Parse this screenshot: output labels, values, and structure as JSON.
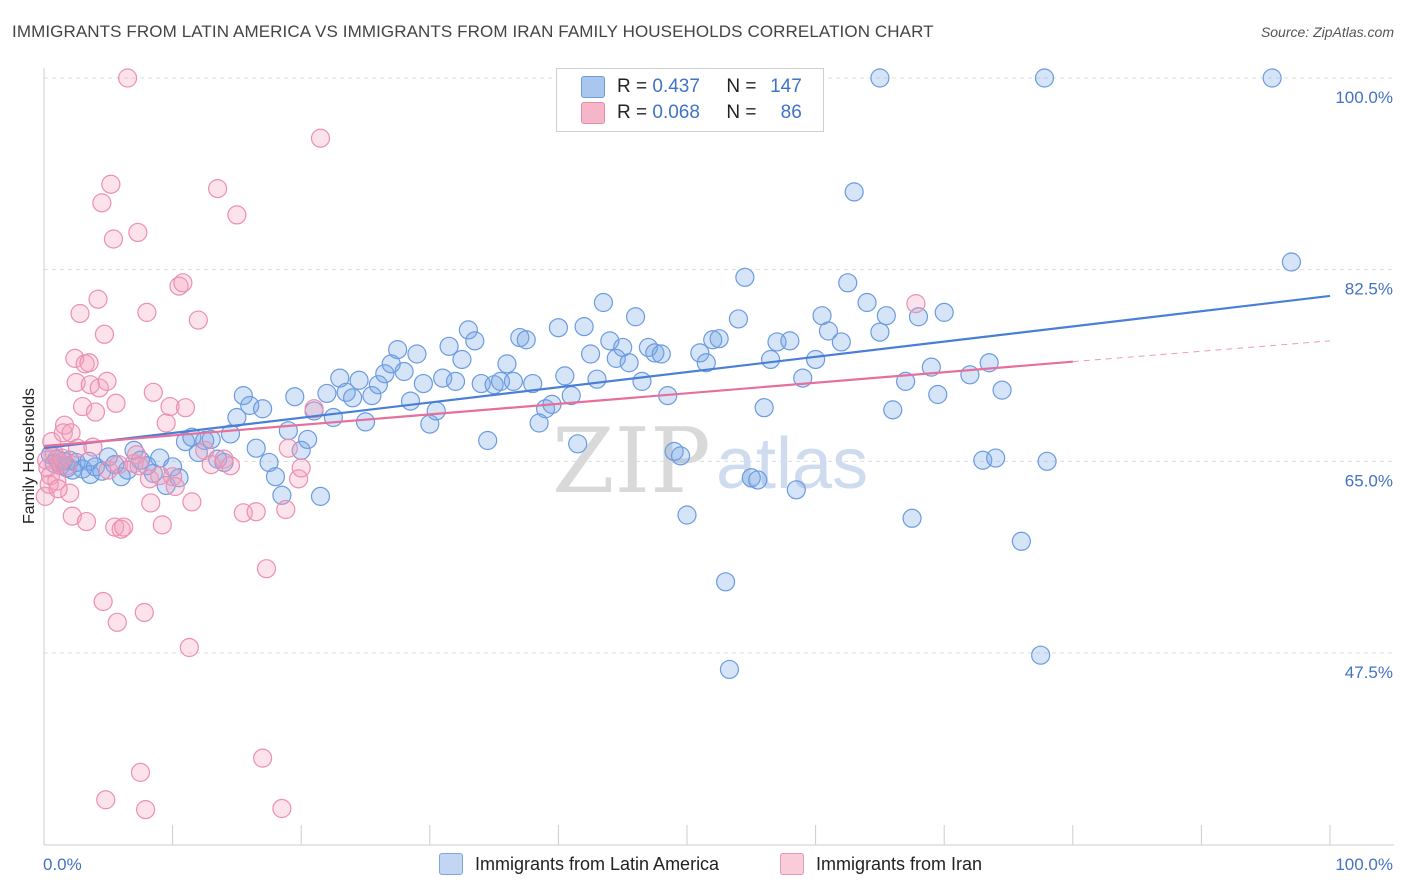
{
  "title": "IMMIGRANTS FROM LATIN AMERICA VS IMMIGRANTS FROM IRAN FAMILY HOUSEHOLDS CORRELATION CHART",
  "source": "Source: ZipAtlas.com",
  "watermark": {
    "zip": "ZIP",
    "atlas": "atlas"
  },
  "legend": {
    "rows": [
      {
        "r_label": "R =",
        "r_value": "0.437",
        "n_label": "N =",
        "n_value": "147",
        "color": "#a9c6ee",
        "border": "#6b9be0"
      },
      {
        "r_label": "R =",
        "r_value": "0.068",
        "n_label": "N =",
        "n_value": "86",
        "color": "#f6b6ca",
        "border": "#e68aa9"
      }
    ]
  },
  "bottom_legend": [
    {
      "label": "Immigrants from Latin America",
      "color": "#c2d6f3",
      "border": "#7ea5e0"
    },
    {
      "label": "Immigrants from Iran",
      "color": "#f9ccd9",
      "border": "#e896b2"
    }
  ],
  "chart_data": {
    "type": "scatter",
    "title": "IMMIGRANTS FROM LATIN AMERICA VS IMMIGRANTS FROM IRAN FAMILY HOUSEHOLDS CORRELATION CHART",
    "xlabel": "",
    "ylabel": "Family Households",
    "x_tick_labels": [
      "0.0%",
      "100.0%"
    ],
    "y_tick_labels": [
      "100.0%",
      "82.5%",
      "65.0%",
      "47.5%"
    ],
    "y_ticks": [
      100.0,
      82.5,
      65.0,
      47.5
    ],
    "xlim": [
      0,
      100
    ],
    "ylim": [
      32,
      102
    ],
    "grid": true,
    "legend_position": "top-center",
    "colors": {
      "latin": "#4a7fd6",
      "iran": "#e76f9b"
    },
    "series": [
      {
        "name": "Immigrants from Latin America",
        "r": 0.437,
        "n": 147,
        "trend": {
          "x0": 0,
          "y0": 66.2,
          "x1": 100,
          "y1": 80.1
        },
        "points": [
          [
            0.5,
            65.6
          ],
          [
            0.8,
            64.8
          ],
          [
            1.0,
            65.2
          ],
          [
            1.3,
            64.6
          ],
          [
            1.5,
            65.0
          ],
          [
            1.8,
            64.4
          ],
          [
            2.0,
            65.1
          ],
          [
            2.2,
            64.2
          ],
          [
            2.5,
            64.9
          ],
          [
            3.0,
            64.3
          ],
          [
            3.5,
            65.0
          ],
          [
            3.6,
            63.8
          ],
          [
            4.0,
            64.5
          ],
          [
            4.5,
            64.1
          ],
          [
            5.0,
            65.4
          ],
          [
            5.5,
            64.7
          ],
          [
            6.0,
            63.6
          ],
          [
            6.5,
            64.2
          ],
          [
            7.0,
            66.0
          ],
          [
            7.5,
            65.1
          ],
          [
            8.0,
            64.6
          ],
          [
            8.5,
            63.9
          ],
          [
            9.0,
            65.3
          ],
          [
            9.5,
            62.8
          ],
          [
            10.0,
            64.5
          ],
          [
            10.5,
            63.5
          ],
          [
            11.0,
            66.8
          ],
          [
            11.5,
            67.2
          ],
          [
            12.0,
            65.8
          ],
          [
            12.5,
            66.9
          ],
          [
            13.0,
            67.0
          ],
          [
            13.5,
            65.2
          ],
          [
            14.0,
            64.9
          ],
          [
            14.5,
            67.5
          ],
          [
            15.0,
            69.0
          ],
          [
            15.5,
            71.0
          ],
          [
            16.0,
            70.1
          ],
          [
            16.5,
            66.2
          ],
          [
            17.0,
            69.8
          ],
          [
            17.5,
            64.9
          ],
          [
            18.0,
            63.6
          ],
          [
            18.5,
            61.9
          ],
          [
            19.0,
            67.8
          ],
          [
            19.5,
            70.9
          ],
          [
            20.0,
            66.0
          ],
          [
            20.5,
            67.0
          ],
          [
            21.0,
            69.6
          ],
          [
            21.5,
            61.8
          ],
          [
            22.0,
            71.2
          ],
          [
            22.5,
            69.0
          ],
          [
            23.0,
            72.6
          ],
          [
            23.5,
            71.3
          ],
          [
            24.0,
            70.8
          ],
          [
            24.5,
            72.4
          ],
          [
            25.0,
            68.6
          ],
          [
            25.5,
            71.0
          ],
          [
            26.0,
            72.0
          ],
          [
            26.5,
            73.0
          ],
          [
            27.0,
            73.9
          ],
          [
            27.5,
            75.2
          ],
          [
            28.0,
            73.2
          ],
          [
            28.5,
            70.5
          ],
          [
            29.0,
            74.8
          ],
          [
            29.5,
            72.1
          ],
          [
            30.0,
            68.4
          ],
          [
            30.5,
            69.6
          ],
          [
            31.0,
            72.6
          ],
          [
            31.5,
            75.5
          ],
          [
            32.0,
            72.3
          ],
          [
            32.5,
            74.3
          ],
          [
            33.0,
            77.0
          ],
          [
            33.5,
            76.0
          ],
          [
            34.0,
            72.1
          ],
          [
            34.5,
            66.9
          ],
          [
            35.0,
            72.0
          ],
          [
            35.5,
            72.3
          ],
          [
            36.0,
            73.9
          ],
          [
            36.5,
            72.3
          ],
          [
            37.0,
            76.3
          ],
          [
            37.5,
            76.1
          ],
          [
            38.0,
            72.1
          ],
          [
            38.5,
            68.5
          ],
          [
            39.0,
            69.8
          ],
          [
            39.5,
            70.2
          ],
          [
            40.0,
            77.2
          ],
          [
            40.5,
            72.8
          ],
          [
            41.0,
            71.0
          ],
          [
            41.5,
            66.6
          ],
          [
            42.0,
            77.3
          ],
          [
            42.5,
            74.8
          ],
          [
            43.0,
            72.5
          ],
          [
            43.5,
            79.5
          ],
          [
            44.0,
            76.0
          ],
          [
            44.5,
            74.4
          ],
          [
            45.0,
            75.4
          ],
          [
            45.5,
            74.0
          ],
          [
            46.0,
            78.2
          ],
          [
            46.5,
            72.3
          ],
          [
            47.0,
            75.4
          ],
          [
            47.5,
            74.9
          ],
          [
            48.0,
            74.8
          ],
          [
            48.5,
            71.0
          ],
          [
            49.0,
            65.9
          ],
          [
            49.5,
            65.5
          ],
          [
            50.0,
            60.1
          ],
          [
            51.0,
            74.9
          ],
          [
            51.5,
            74.0
          ],
          [
            52.0,
            76.1
          ],
          [
            52.5,
            76.2
          ],
          [
            53.0,
            54.0
          ],
          [
            53.3,
            46.0
          ],
          [
            54.0,
            78.0
          ],
          [
            54.5,
            81.8
          ],
          [
            55.0,
            63.5
          ],
          [
            55.5,
            63.3
          ],
          [
            56.0,
            69.9
          ],
          [
            56.5,
            74.3
          ],
          [
            57.0,
            75.9
          ],
          [
            58.0,
            76.0
          ],
          [
            58.5,
            62.4
          ],
          [
            59.0,
            72.6
          ],
          [
            60.0,
            74.3
          ],
          [
            60.5,
            78.3
          ],
          [
            61.0,
            76.9
          ],
          [
            62.0,
            75.9
          ],
          [
            62.5,
            81.3
          ],
          [
            63.0,
            89.6
          ],
          [
            64.0,
            79.5
          ],
          [
            65.0,
            76.8
          ],
          [
            65.5,
            78.3
          ],
          [
            66.0,
            69.7
          ],
          [
            67.0,
            72.3
          ],
          [
            67.5,
            59.8
          ],
          [
            68.0,
            78.2
          ],
          [
            69.0,
            73.6
          ],
          [
            69.5,
            71.1
          ],
          [
            70.0,
            78.6
          ],
          [
            72.0,
            72.9
          ],
          [
            73.0,
            65.1
          ],
          [
            73.5,
            74.0
          ],
          [
            74.0,
            65.3
          ],
          [
            74.5,
            71.5
          ],
          [
            76.0,
            57.7
          ],
          [
            77.5,
            47.3
          ],
          [
            78.0,
            65.0
          ],
          [
            97.0,
            83.2
          ],
          [
            65.0,
            100.0
          ],
          [
            77.8,
            100.0
          ],
          [
            95.5,
            100.0
          ]
        ]
      },
      {
        "name": "Immigrants from Iran",
        "r": 0.068,
        "n": 86,
        "trend": {
          "x0": 0,
          "y0": 66.4,
          "x1": 80,
          "y1": 74.1
        },
        "trend_ext": {
          "x0": 80,
          "y0": 74.1,
          "x1": 100,
          "y1": 76.0
        },
        "points": [
          [
            0.2,
            65.1
          ],
          [
            0.3,
            64.4
          ],
          [
            0.5,
            63.7
          ],
          [
            0.6,
            66.8
          ],
          [
            0.8,
            65.7
          ],
          [
            1.0,
            63.2
          ],
          [
            1.2,
            64.9
          ],
          [
            1.4,
            65.3
          ],
          [
            1.5,
            67.6
          ],
          [
            1.6,
            68.3
          ],
          [
            1.8,
            64.6
          ],
          [
            2.0,
            62.1
          ],
          [
            2.1,
            67.6
          ],
          [
            2.2,
            60.0
          ],
          [
            2.4,
            74.4
          ],
          [
            2.5,
            72.2
          ],
          [
            2.6,
            66.2
          ],
          [
            2.8,
            78.5
          ],
          [
            3.0,
            70.0
          ],
          [
            3.2,
            73.9
          ],
          [
            3.3,
            59.5
          ],
          [
            3.5,
            74.0
          ],
          [
            3.6,
            72.0
          ],
          [
            3.8,
            66.3
          ],
          [
            4.0,
            69.5
          ],
          [
            4.2,
            79.8
          ],
          [
            4.3,
            71.7
          ],
          [
            4.5,
            88.6
          ],
          [
            4.6,
            52.2
          ],
          [
            4.7,
            76.6
          ],
          [
            4.8,
            34.1
          ],
          [
            4.9,
            72.3
          ],
          [
            5.0,
            64.2
          ],
          [
            5.2,
            90.3
          ],
          [
            5.4,
            85.3
          ],
          [
            5.5,
            59.0
          ],
          [
            5.6,
            70.3
          ],
          [
            5.7,
            50.3
          ],
          [
            5.8,
            64.7
          ],
          [
            6.0,
            58.8
          ],
          [
            6.2,
            59.0
          ],
          [
            6.5,
            100.0
          ],
          [
            7.0,
            64.8
          ],
          [
            7.2,
            65.6
          ],
          [
            7.3,
            85.9
          ],
          [
            7.4,
            64.6
          ],
          [
            7.5,
            36.6
          ],
          [
            7.8,
            51.2
          ],
          [
            7.9,
            33.2
          ],
          [
            8.0,
            78.6
          ],
          [
            8.2,
            63.4
          ],
          [
            8.3,
            61.2
          ],
          [
            8.5,
            71.3
          ],
          [
            9.0,
            63.7
          ],
          [
            9.2,
            59.2
          ],
          [
            9.5,
            68.5
          ],
          [
            9.8,
            70.0
          ],
          [
            10.0,
            63.6
          ],
          [
            10.2,
            62.7
          ],
          [
            10.5,
            81.0
          ],
          [
            10.8,
            81.3
          ],
          [
            11.0,
            69.9
          ],
          [
            11.3,
            48.0
          ],
          [
            11.5,
            61.3
          ],
          [
            12.0,
            77.9
          ],
          [
            12.5,
            66.0
          ],
          [
            13.0,
            64.7
          ],
          [
            13.5,
            89.9
          ],
          [
            14.0,
            65.2
          ],
          [
            14.5,
            64.6
          ],
          [
            15.0,
            87.5
          ],
          [
            15.5,
            60.3
          ],
          [
            16.5,
            60.4
          ],
          [
            17.0,
            37.9
          ],
          [
            17.3,
            55.2
          ],
          [
            18.5,
            33.3
          ],
          [
            18.8,
            60.6
          ],
          [
            19.0,
            66.2
          ],
          [
            19.8,
            63.4
          ],
          [
            20.0,
            64.4
          ],
          [
            21.0,
            69.8
          ],
          [
            21.5,
            94.5
          ],
          [
            67.8,
            79.4
          ],
          [
            0.1,
            61.8
          ],
          [
            0.4,
            62.9
          ],
          [
            1.1,
            62.5
          ]
        ]
      }
    ]
  }
}
